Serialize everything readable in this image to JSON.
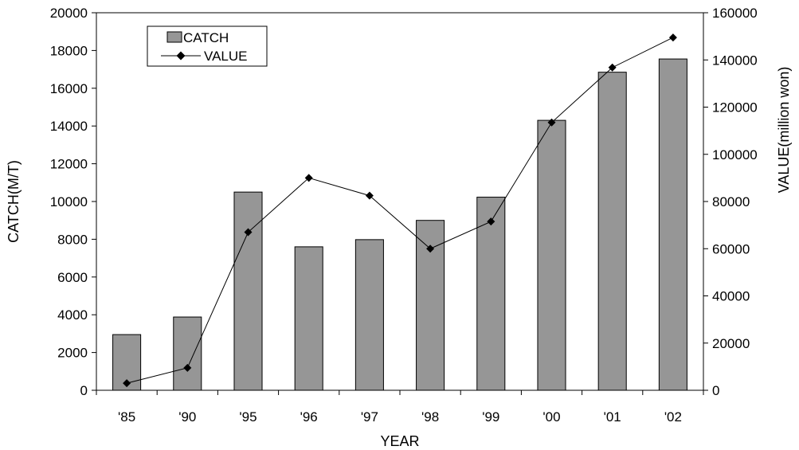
{
  "chart_data": {
    "type": "bar",
    "title": "",
    "xlabel": "YEAR",
    "ylabel": "CATCH(M/T)",
    "y2label": "VALUE(million won)",
    "categories": [
      "'85",
      "'90",
      "'95",
      "'96",
      "'97",
      "'98",
      "'99",
      "'00",
      "'01",
      "'02"
    ],
    "ylim": [
      0,
      20000
    ],
    "yticks": [
      "0",
      "2000",
      "4000",
      "6000",
      "8000",
      "10000",
      "12000",
      "14000",
      "16000",
      "18000",
      "20000"
    ],
    "y2lim": [
      0,
      160000
    ],
    "y2ticks": [
      "0",
      "20000",
      "40000",
      "60000",
      "80000",
      "100000",
      "120000",
      "140000",
      "160000"
    ],
    "grid": false,
    "legend_position": "top-left",
    "series": [
      {
        "name": "CATCH",
        "type": "bar",
        "axis": "left",
        "color": "#969696",
        "values": [
          2950,
          3880,
          10500,
          7600,
          7980,
          9000,
          10230,
          14300,
          16850,
          17550
        ]
      },
      {
        "name": "VALUE",
        "type": "line",
        "axis": "right",
        "color": "#000000",
        "marker": "diamond",
        "values": [
          3000,
          9500,
          67000,
          90000,
          82500,
          60000,
          71500,
          113500,
          136800,
          149500
        ]
      }
    ]
  }
}
